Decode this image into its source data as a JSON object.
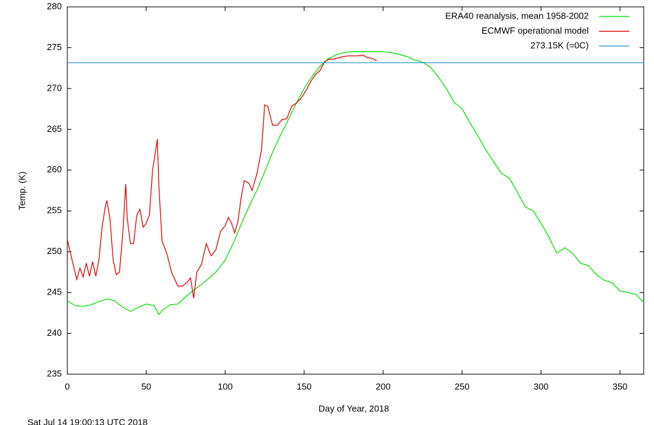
{
  "chart_data": {
    "type": "line",
    "xlabel": "Day of Year, 2018",
    "ylabel": "Temp. (K)",
    "footer": "Sat Jul 14 19:00:13 UTC 2018",
    "xlim": [
      0,
      365
    ],
    "ylim": [
      235,
      280
    ],
    "xticks": [
      0,
      50,
      100,
      150,
      200,
      250,
      300,
      350
    ],
    "yticks": [
      235,
      240,
      245,
      250,
      255,
      260,
      265,
      270,
      275,
      280
    ],
    "legend": "top-right",
    "series": [
      {
        "name": "ERA40 reanalysis, mean 1958-2002",
        "color": "#00dd00",
        "x": [
          0,
          5,
          10,
          15,
          20,
          25,
          30,
          35,
          40,
          45,
          50,
          55,
          58,
          60,
          65,
          70,
          75,
          80,
          85,
          90,
          95,
          100,
          105,
          110,
          115,
          120,
          125,
          130,
          135,
          140,
          145,
          150,
          155,
          160,
          165,
          170,
          175,
          180,
          185,
          190,
          195,
          200,
          205,
          210,
          215,
          220,
          225,
          230,
          235,
          240,
          245,
          250,
          255,
          260,
          265,
          270,
          275,
          280,
          285,
          290,
          295,
          300,
          305,
          310,
          315,
          320,
          325,
          330,
          335,
          340,
          345,
          350,
          355,
          360,
          365
        ],
        "values": [
          244,
          243.4,
          243.3,
          243.5,
          243.9,
          244.2,
          244.0,
          243.2,
          242.7,
          243.2,
          243.6,
          243.4,
          242.3,
          242.8,
          243.5,
          243.6,
          244.5,
          245.3,
          246.0,
          246.8,
          247.7,
          249.0,
          251.0,
          253.3,
          255.5,
          257.5,
          259.8,
          262.2,
          264.3,
          266.2,
          268.2,
          270.0,
          271.5,
          272.7,
          273.6,
          274.1,
          274.4,
          274.5,
          274.5,
          274.5,
          274.5,
          274.5,
          274.4,
          274.2,
          273.9,
          273.5,
          273.2,
          272.6,
          271.4,
          270.0,
          268.3,
          267.5,
          265.8,
          264.2,
          262.5,
          261.0,
          259.6,
          259.0,
          257.3,
          255.5,
          255.0,
          253.5,
          251.8,
          249.8,
          250.5,
          249.8,
          248.6,
          248.3,
          247.2,
          246.5,
          246.2,
          245.2,
          245.0,
          244.8,
          243.8
        ]
      },
      {
        "name": "ECMWF operational model",
        "color": "#dd0000",
        "x": [
          0,
          3,
          6,
          8,
          10,
          12,
          14,
          16,
          18,
          20,
          22,
          24,
          25,
          27,
          29,
          31,
          33,
          35,
          37,
          38,
          40,
          42,
          44,
          46,
          48,
          50,
          52,
          54,
          56,
          57,
          58,
          60,
          63,
          66,
          70,
          73,
          76,
          78,
          80,
          82,
          85,
          88,
          91,
          94,
          97,
          100,
          102,
          104,
          106,
          108,
          110,
          112,
          115,
          117,
          120,
          123,
          125,
          127,
          130,
          133,
          136,
          139,
          142,
          145,
          148,
          151,
          154,
          157,
          160,
          163,
          166,
          169,
          172,
          175,
          178,
          181,
          184,
          187,
          190,
          193,
          196
        ],
        "values": [
          251.5,
          249,
          246.6,
          248,
          246.9,
          248.6,
          247,
          248.8,
          247,
          249,
          253,
          255.5,
          256.3,
          254,
          249,
          247.2,
          247.5,
          252,
          258.3,
          254,
          251,
          251,
          254.5,
          255.2,
          253,
          253.5,
          254.5,
          260,
          262.5,
          263.8,
          258,
          251.3,
          249.8,
          247.5,
          245.8,
          245.8,
          246.3,
          246.8,
          244.3,
          247.5,
          248.5,
          251,
          249.5,
          250.2,
          252.5,
          253.2,
          254.2,
          253.5,
          252.3,
          253.7,
          256.5,
          258.7,
          258.4,
          257.5,
          259.5,
          262.5,
          268,
          267.8,
          265.5,
          265.5,
          266.2,
          266.3,
          267.8,
          268.2,
          268.8,
          269.7,
          270.8,
          271.7,
          272.2,
          273.3,
          273.6,
          273.6,
          273.8,
          273.9,
          274.0,
          274.0,
          274.0,
          274.1,
          273.8,
          273.7,
          273.4
        ]
      }
    ],
    "threshold": {
      "name": "273.15K (=0C)",
      "value": 273.15,
      "color": "#2a9bc9"
    }
  }
}
